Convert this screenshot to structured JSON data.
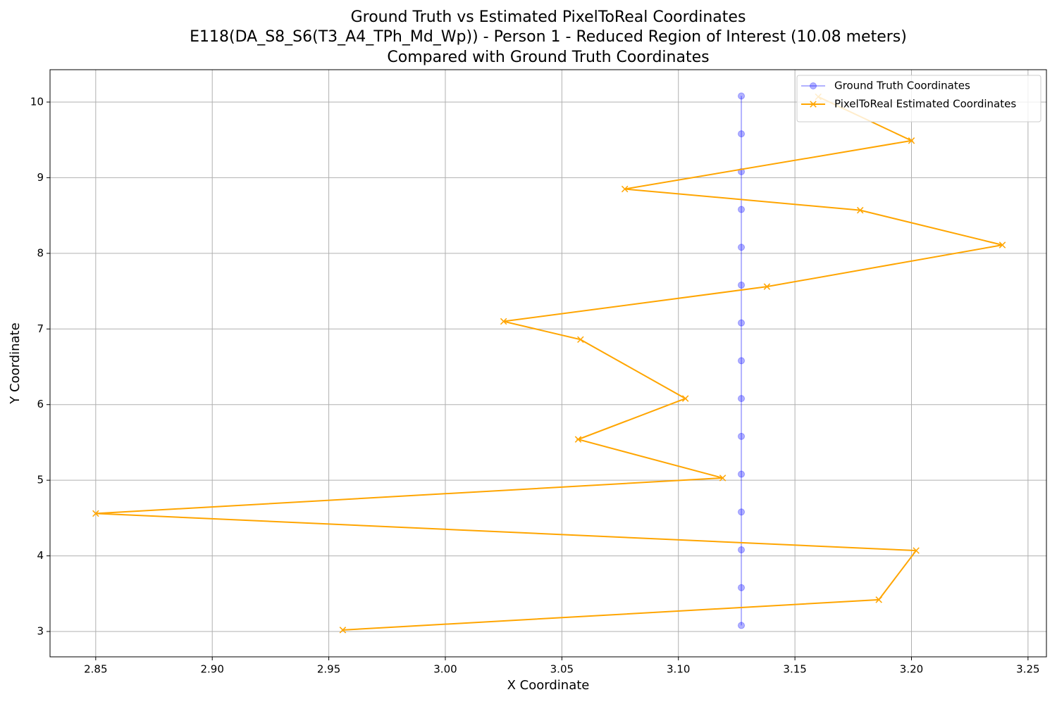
{
  "chart_data": {
    "type": "line",
    "title": [
      "Ground Truth vs Estimated PixelToReal Coordinates",
      "E118(DA_S8_S6(T3_A4_TPh_Md_Wp)) - Person 1 - Reduced Region of Interest (10.08 meters)",
      "Compared with Ground Truth Coordinates"
    ],
    "x_label": "X Coordinate",
    "y_label": "Y Coordinate",
    "xlim": [
      2.8304,
      3.2579
    ],
    "ylim": [
      2.665,
      10.428
    ],
    "xticks": [
      2.85,
      {
        "value": 2.9,
        "label": "2.90"
      },
      2.95,
      {
        "value": 3.0,
        "label": "3.00"
      },
      3.05,
      {
        "value": 3.1,
        "label": "3.10"
      },
      3.15,
      {
        "value": 3.2,
        "label": "3.20"
      },
      3.25
    ],
    "yticks": [
      3,
      4,
      5,
      6,
      7,
      8,
      9,
      10
    ],
    "grid": true,
    "legend": "upper right",
    "series": [
      {
        "name": "Ground Truth Coordinates",
        "color": "#0000ff",
        "alpha": 0.3,
        "marker": "o",
        "x": [
          3.127,
          3.127,
          3.127,
          3.127,
          3.127,
          3.127,
          3.127,
          3.127,
          3.127,
          3.127,
          3.127,
          3.127,
          3.127,
          3.127,
          3.127
        ],
        "values": [
          3.08,
          3.58,
          4.08,
          4.58,
          5.08,
          5.58,
          6.08,
          6.58,
          7.08,
          7.58,
          8.08,
          8.58,
          9.08,
          9.58,
          10.08
        ]
      },
      {
        "name": "PixelToReal Estimated Coordinates",
        "color": "#ffa500",
        "alpha": 1,
        "marker": "x",
        "x": [
          2.956,
          3.186,
          3.202,
          2.85,
          3.119,
          3.057,
          3.103,
          3.058,
          3.025,
          3.138,
          3.239,
          3.178,
          3.077,
          3.2,
          3.16
        ],
        "values": [
          3.02,
          3.42,
          4.07,
          4.56,
          5.03,
          5.54,
          6.08,
          6.86,
          7.1,
          7.56,
          8.11,
          8.57,
          8.85,
          9.49,
          10.07
        ]
      }
    ]
  }
}
